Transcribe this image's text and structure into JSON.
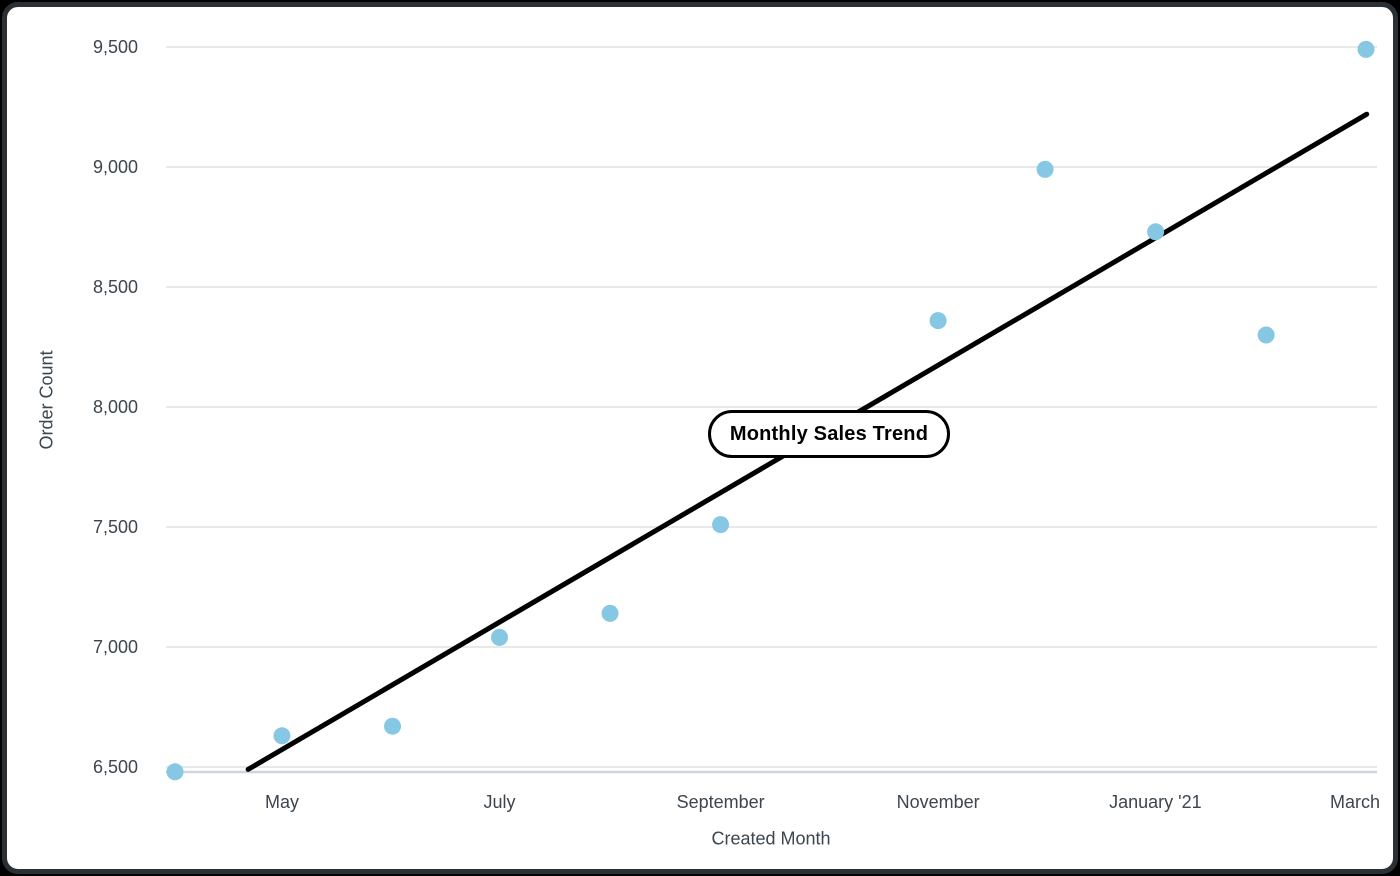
{
  "chart_data": {
    "type": "scatter",
    "title": "Monthly Sales Trend",
    "xlabel": "Created Month",
    "ylabel": "Order Count",
    "ylim": [
      6500,
      9500
    ],
    "y_tick_step": 500,
    "grid": true,
    "legend": "none",
    "y_ticks": [
      {
        "value": 9500,
        "label": "9,500"
      },
      {
        "value": 9000,
        "label": "9,000"
      },
      {
        "value": 8500,
        "label": "8,500"
      },
      {
        "value": 8000,
        "label": "8,000"
      },
      {
        "value": 7500,
        "label": "7,500"
      },
      {
        "value": 7000,
        "label": "7,000"
      },
      {
        "value": 6500,
        "label": "6,500"
      }
    ],
    "x_ticks": [
      {
        "label": "May",
        "day": 30
      },
      {
        "label": "July",
        "day": 91
      },
      {
        "label": "September",
        "day": 153
      },
      {
        "label": "November",
        "day": 214
      },
      {
        "label": "January '21",
        "day": 275
      },
      {
        "label": "March",
        "day": 334
      }
    ],
    "points": [
      {
        "month": "Apr 2020",
        "day": 0,
        "value": 6480
      },
      {
        "month": "May 2020",
        "day": 30,
        "value": 6630
      },
      {
        "month": "Jun 2020",
        "day": 61,
        "value": 6670
      },
      {
        "month": "Jul 2020",
        "day": 91,
        "value": 7040
      },
      {
        "month": "Aug 2020",
        "day": 122,
        "value": 7140
      },
      {
        "month": "Sep 2020",
        "day": 153,
        "value": 7510
      },
      {
        "month": "Nov 2020",
        "day": 214,
        "value": 8360
      },
      {
        "month": "Dec 2020",
        "day": 244,
        "value": 8990
      },
      {
        "month": "Jan 2021",
        "day": 275,
        "value": 8730
      },
      {
        "month": "Feb 2021",
        "day": 306,
        "value": 8300
      },
      {
        "month": "Mar 2021",
        "day": 334,
        "value": 9490
      }
    ],
    "trend_line": {
      "start": {
        "day": 20.5,
        "value": 6490
      },
      "end": {
        "day": 334.2,
        "value": 9220
      }
    },
    "colors": {
      "point": "#86c7e4",
      "trend": "#000000",
      "gridline": "#e8e8e8",
      "axis_line": "#ccd6e2",
      "text": "#3c464e",
      "card_border": "#2a3136",
      "title_bg": "#ffffff",
      "title_border": "#000000"
    }
  }
}
